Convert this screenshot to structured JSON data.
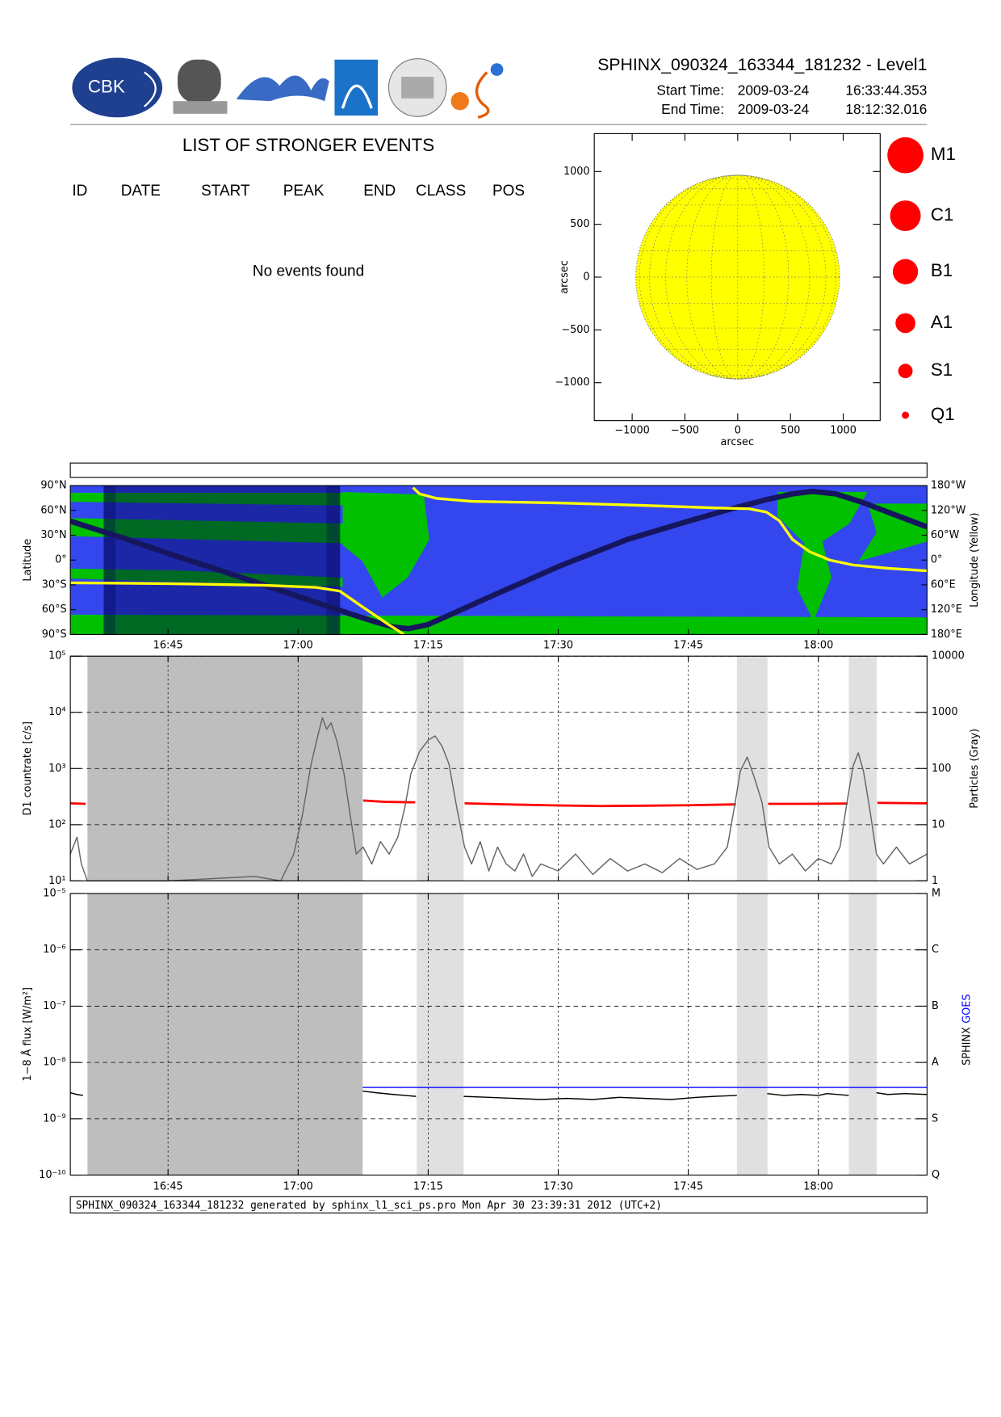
{
  "header": {
    "logo_text": "CBK",
    "title": "SPHINX_090324_163344_181232 - Level1",
    "start_label": "Start Time:",
    "start_date": "2009-03-24",
    "start_time": "16:33:44.353",
    "end_label": "End Time:",
    "end_date": "2009-03-24",
    "end_time": "18:12:32.016"
  },
  "events": {
    "title": "LIST OF STRONGER EVENTS",
    "columns": [
      "ID",
      "DATE",
      "START",
      "PEAK",
      "END",
      "CLASS",
      "POS"
    ],
    "message": "No events found"
  },
  "chart_data": [
    {
      "type": "disk",
      "xlabel": "arcsec",
      "ylabel": "arcsec",
      "xlim": [
        -1359,
        1350
      ],
      "ylim": [
        -1359,
        1359
      ],
      "xticks": [
        {
          "value": -1000,
          "label": "−1000"
        },
        {
          "value": -500,
          "label": "−500"
        },
        0,
        500,
        1000
      ],
      "yticks": [
        {
          "value": -1000,
          "label": "−1000"
        },
        {
          "value": -500,
          "label": "−500"
        },
        0,
        500,
        1000
      ],
      "disk_radius": 965,
      "disk_color": "#ffff00",
      "legend": [
        "M1",
        "C1",
        "B1",
        "A1",
        "S1",
        "Q1"
      ],
      "legend_color": "#ff0000"
    },
    {
      "type": "track",
      "ylabel": "Latitude",
      "y2label": "Longitude (Yellow)",
      "xlim": [
        993.733,
        1092.533
      ],
      "xticks": [
        {
          "value": 1005,
          "label": "16:45"
        },
        {
          "value": 1020,
          "label": "17:00"
        },
        {
          "value": 1035,
          "label": "17:15"
        },
        {
          "value": 1050,
          "label": "17:30"
        },
        {
          "value": 1065,
          "label": "17:45"
        },
        {
          "value": 1080,
          "label": "18:00"
        }
      ],
      "ylim": [
        -90,
        90
      ],
      "yticks": [
        {
          "value": 90,
          "label": "90°N"
        },
        {
          "value": 60,
          "label": "60°N"
        },
        {
          "value": 30,
          "label": "30°N"
        },
        {
          "value": 0,
          "label": "0°"
        },
        {
          "value": -30,
          "label": "30°S"
        },
        {
          "value": -60,
          "label": "60°S"
        },
        {
          "value": -90,
          "label": "90°S"
        }
      ],
      "y2lim": [
        -180,
        180
      ],
      "y2_reversed": true,
      "y2ticks": [
        {
          "value": -180,
          "label": "180°W"
        },
        {
          "value": -120,
          "label": "120°W"
        },
        {
          "value": -60,
          "label": "60°W"
        },
        {
          "value": 0,
          "label": "0°"
        },
        {
          "value": 60,
          "label": "60°E"
        },
        {
          "value": 120,
          "label": "120°E"
        },
        {
          "value": 180,
          "label": "180°E"
        }
      ],
      "shaded": [
        {
          "start": 997.58,
          "end": 1024.84,
          "color": "#000050"
        }
      ],
      "series": [
        {
          "color": "#16165e",
          "x": [
            993.73,
            1000,
            1005,
            1010,
            1020,
            1026,
            1029,
            1031,
            1032.7,
            1035,
            1042,
            1050,
            1058,
            1065,
            1070,
            1074,
            1077,
            1079.3,
            1082,
            1085,
            1088,
            1092.53
          ],
          "values": [
            47,
            26,
            8,
            -9,
            -44,
            -65,
            -75,
            -81,
            -83,
            -78,
            -45,
            -8,
            25,
            47,
            62,
            73,
            80,
            83,
            80,
            70,
            58,
            40
          ]
        },
        {
          "color": "#ffff00",
          "axis": "y2",
          "x": [
            993.73,
            1005,
            1016,
            1022,
            1024.8,
            1027.2,
            1030.3,
            1032.2,
            1032.7,
            1033.26,
            1034,
            1036,
            1040,
            1050,
            1060,
            1068,
            1072,
            1074,
            1075.5,
            1077,
            1079,
            1081.3,
            1084,
            1088,
            1092.53
          ],
          "values": [
            55,
            57,
            61,
            66,
            75,
            110,
            154,
            180,
            null,
            -175,
            -160,
            -149,
            -142,
            -138,
            -132,
            -126,
            -124,
            -116,
            -95,
            -50,
            -20,
            0,
            12,
            20,
            26
          ]
        }
      ]
    },
    {
      "type": "line",
      "log": true,
      "grid": true,
      "ylabel": "D1 countrate [c/s]",
      "y2label": "Particles (Gray)",
      "xlim": [
        993.733,
        1092.533
      ],
      "xticks": [
        1005,
        1020,
        1035,
        1050,
        1065,
        1080
      ],
      "ylim": [
        10,
        100000
      ],
      "yticks": [
        {
          "value": 10,
          "label": "10¹"
        },
        {
          "value": 100,
          "label": "10²"
        },
        {
          "value": 1000,
          "label": "10³"
        },
        {
          "value": 10000,
          "label": "10⁴"
        },
        {
          "value": 100000,
          "label": "10⁵"
        }
      ],
      "y2lim": [
        1,
        10000
      ],
      "y2ticks": [
        1,
        10,
        100,
        1000,
        10000
      ],
      "shaded": [
        {
          "start": 995.71,
          "end": 1027.44,
          "color": "#bebebe"
        },
        {
          "start": 1033.68,
          "end": 1039.09,
          "color": "#e0e0e0"
        },
        {
          "start": 1070.61,
          "end": 1074.14,
          "color": "#e0e0e0"
        },
        {
          "start": 1083.51,
          "end": 1086.73,
          "color": "#e0e0e0"
        }
      ],
      "series": [
        {
          "color": "#ff0000",
          "x": [
            993.73,
            995.5,
            1010,
            1027.5,
            1030,
            1033.5,
            1036,
            1039.2,
            1045,
            1050,
            1055,
            1060,
            1065,
            1070.5,
            1072,
            1074.2,
            1078,
            1083.4,
            1085,
            1086.8,
            1092.53
          ],
          "values": [
            240,
            235,
            null,
            270,
            255,
            250,
            null,
            240,
            228,
            220,
            215,
            218,
            222,
            230,
            null,
            235,
            235,
            238,
            null,
            245,
            240
          ]
        },
        {
          "color": "#666666",
          "axis": "y2",
          "x": [
            993.73,
            994.5,
            995,
            995.7,
            1005,
            1015,
            1018,
            1019.5,
            1020.5,
            1021.5,
            1022.3,
            1022.8,
            1023.3,
            1023.8,
            1024.5,
            1025.3,
            1026,
            1026.7,
            1027.5,
            1028.5,
            1029.5,
            1030.5,
            1031.5,
            1032.3,
            1033,
            1034,
            1035,
            1035.8,
            1036.6,
            1037.4,
            1038.3,
            1039.2,
            1040,
            1041,
            1042,
            1043,
            1044,
            1045,
            1046,
            1047,
            1048,
            1050,
            1052,
            1054,
            1056,
            1058,
            1060,
            1062,
            1064,
            1066,
            1068,
            1069.5,
            1070.3,
            1071,
            1071.8,
            1072.6,
            1073.5,
            1074.3,
            1075.5,
            1077,
            1078.5,
            1080,
            1081.5,
            1082.5,
            1083.3,
            1084,
            1084.6,
            1085.2,
            1085.9,
            1086.7,
            1087.5,
            1089,
            1090.5,
            1092.53
          ],
          "values": [
            3,
            6,
            2,
            1,
            1,
            1.2,
            1,
            3,
            15,
            120,
            400,
            800,
            500,
            650,
            300,
            80,
            15,
            3,
            4,
            2,
            5,
            3,
            6,
            20,
            80,
            200,
            320,
            380,
            250,
            120,
            20,
            4,
            2,
            5,
            1.5,
            4,
            2,
            1.5,
            3,
            1.2,
            2,
            1.5,
            3,
            1.3,
            2.5,
            1.5,
            2,
            1.4,
            2.5,
            1.6,
            2,
            4,
            20,
            90,
            160,
            70,
            25,
            4,
            2,
            3,
            1.5,
            2.5,
            2,
            4,
            25,
            110,
            190,
            90,
            20,
            3,
            2,
            4,
            2,
            3
          ]
        }
      ]
    },
    {
      "type": "line",
      "log": true,
      "grid": true,
      "ylabel": "1−8 Å flux [W/m²]",
      "legend": "right",
      "xlim": [
        993.733,
        1092.533
      ],
      "xticks": [
        {
          "value": 1005,
          "label": "16:45"
        },
        {
          "value": 1020,
          "label": "17:00"
        },
        {
          "value": 1035,
          "label": "17:15"
        },
        {
          "value": 1050,
          "label": "17:30"
        },
        {
          "value": 1065,
          "label": "17:45"
        },
        {
          "value": 1080,
          "label": "18:00"
        }
      ],
      "ylim": [
        1e-10,
        1e-05
      ],
      "yticks": [
        {
          "value": 1e-10,
          "label": "10⁻¹⁰"
        },
        {
          "value": 1e-09,
          "label": "10⁻⁹"
        },
        {
          "value": 1e-08,
          "label": "10⁻⁸"
        },
        {
          "value": 1e-07,
          "label": "10⁻⁷"
        },
        {
          "value": 1e-06,
          "label": "10⁻⁶"
        },
        {
          "value": 1e-05,
          "label": "10⁻⁵"
        }
      ],
      "y2lim": [
        1e-10,
        1e-05
      ],
      "y2ticks": [
        {
          "value": 1e-10,
          "label": "Q"
        },
        {
          "value": 1e-09,
          "label": "S"
        },
        {
          "value": 1e-08,
          "label": "A"
        },
        {
          "value": 1e-07,
          "label": "B"
        },
        {
          "value": 1e-06,
          "label": "C"
        },
        {
          "value": 1e-05,
          "label": "M"
        }
      ],
      "shaded": [
        {
          "start": 995.71,
          "end": 1027.44,
          "color": "#bebebe"
        },
        {
          "start": 1033.68,
          "end": 1039.09,
          "color": "#e0e0e0"
        },
        {
          "start": 1070.61,
          "end": 1074.14,
          "color": "#e0e0e0"
        },
        {
          "start": 1083.51,
          "end": 1086.73,
          "color": "#e0e0e0"
        }
      ],
      "series": [
        {
          "name": "SPHINX",
          "color": "#000000",
          "x": [
            993.73,
            994.5,
            995.2,
            995.7,
            1027.44,
            1029,
            1031,
            1033.6,
            1035,
            1039.1,
            1042,
            1045,
            1048,
            1051,
            1054,
            1057,
            1060,
            1063,
            1066,
            1068,
            1070.6,
            1072,
            1074.1,
            1076,
            1078,
            1080,
            1081,
            1083.5,
            1085,
            1086.7,
            1088,
            1090,
            1092.53
          ],
          "values": [
            2.9e-09,
            2.7e-09,
            2.6e-09,
            null,
            3.1e-09,
            2.9e-09,
            2.7e-09,
            2.5e-09,
            null,
            2.5e-09,
            2.4e-09,
            2.3e-09,
            2.2e-09,
            2.3e-09,
            2.2e-09,
            2.4e-09,
            2.3e-09,
            2.2e-09,
            2.4e-09,
            2.5e-09,
            2.6e-09,
            null,
            2.8e-09,
            2.6e-09,
            2.7e-09,
            2.6e-09,
            2.8e-09,
            2.6e-09,
            null,
            2.9e-09,
            2.7e-09,
            2.8e-09,
            2.7e-09
          ]
        },
        {
          "name": "GOES",
          "color": "#0000ff",
          "x": [
            1027.44,
            1092.53
          ],
          "values": [
            3.6e-09,
            3.6e-09
          ]
        }
      ]
    }
  ],
  "footer": "SPHINX_090324_163344_181232 generated by sphinx_l1_sci_ps.pro Mon Apr 30 23:39:31 2012 (UTC+2)"
}
